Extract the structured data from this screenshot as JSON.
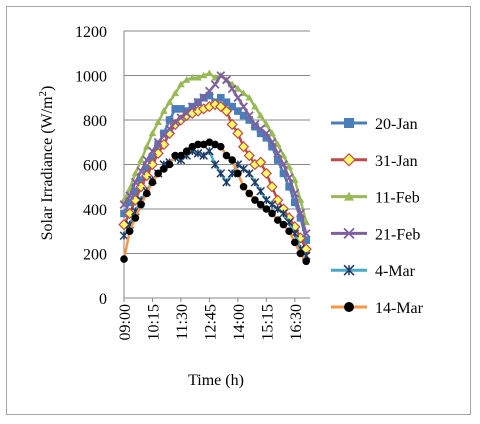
{
  "chart_data": {
    "type": "line",
    "xlabel": "Time (h)",
    "ylabel_main": "Solar Irradiance (W/m",
    "ylabel_sup": "2",
    "ylabel_close": ")",
    "ylim": [
      0,
      1200
    ],
    "yticks": [
      0,
      200,
      400,
      600,
      800,
      1000,
      1200
    ],
    "xlim_minutes": [
      540,
      1030
    ],
    "xticks": [
      "09:00",
      "10:15",
      "11:30",
      "12:45",
      "14:00",
      "15:15",
      "16:30"
    ],
    "grid": "horizontal",
    "legend_position": "right",
    "x": [
      "09:00",
      "09:15",
      "09:30",
      "09:45",
      "10:00",
      "10:15",
      "10:30",
      "10:45",
      "11:00",
      "11:15",
      "11:30",
      "11:45",
      "12:00",
      "12:15",
      "12:30",
      "12:45",
      "13:00",
      "13:15",
      "13:30",
      "13:45",
      "14:00",
      "14:15",
      "14:30",
      "14:45",
      "15:00",
      "15:15",
      "15:30",
      "15:45",
      "16:00",
      "16:15",
      "16:30",
      "16:45",
      "17:00"
    ],
    "series": [
      {
        "name": "20-Jan",
        "color": "#4a7ebb",
        "marker": "square",
        "values": [
          380,
          430,
          480,
          530,
          580,
          630,
          690,
          740,
          800,
          850,
          850,
          840,
          860,
          880,
          900,
          910,
          880,
          900,
          880,
          860,
          840,
          820,
          800,
          770,
          740,
          720,
          680,
          620,
          560,
          500,
          430,
          360,
          260
        ]
      },
      {
        "name": "31-Jan",
        "color": "#be4b48",
        "marker": "diamond",
        "values": [
          330,
          380,
          440,
          500,
          550,
          600,
          650,
          690,
          740,
          780,
          800,
          820,
          830,
          840,
          850,
          860,
          870,
          860,
          840,
          780,
          740,
          680,
          640,
          600,
          610,
          560,
          500,
          440,
          400,
          360,
          320,
          270,
          220
        ]
      },
      {
        "name": "11-Feb",
        "color": "#98b954",
        "marker": "triangle",
        "values": [
          440,
          490,
          560,
          620,
          680,
          740,
          790,
          840,
          880,
          920,
          960,
          980,
          990,
          990,
          1000,
          1010,
          990,
          1000,
          980,
          960,
          940,
          920,
          900,
          860,
          820,
          780,
          740,
          690,
          640,
          590,
          530,
          440,
          340
        ]
      },
      {
        "name": "21-Feb",
        "color": "#7d60a0",
        "marker": "x",
        "values": [
          420,
          460,
          520,
          570,
          620,
          660,
          700,
          730,
          760,
          790,
          810,
          830,
          860,
          880,
          900,
          930,
          960,
          1000,
          980,
          940,
          900,
          860,
          820,
          780,
          760,
          740,
          700,
          650,
          600,
          540,
          470,
          380,
          290
        ]
      },
      {
        "name": "4-Mar",
        "color": "#46aac5",
        "marker": "star",
        "values": [
          280,
          330,
          390,
          440,
          480,
          530,
          560,
          600,
          610,
          630,
          620,
          640,
          660,
          650,
          640,
          660,
          600,
          560,
          520,
          560,
          600,
          580,
          560,
          520,
          480,
          440,
          420,
          400,
          380,
          340,
          290,
          220,
          190
        ]
      },
      {
        "name": "14-Mar",
        "color": "#f79646",
        "marker": "circle",
        "values": [
          175,
          300,
          360,
          420,
          470,
          520,
          560,
          580,
          600,
          640,
          640,
          660,
          680,
          690,
          690,
          700,
          690,
          680,
          640,
          620,
          560,
          500,
          470,
          440,
          420,
          400,
          380,
          350,
          330,
          300,
          250,
          200,
          165
        ]
      }
    ]
  }
}
